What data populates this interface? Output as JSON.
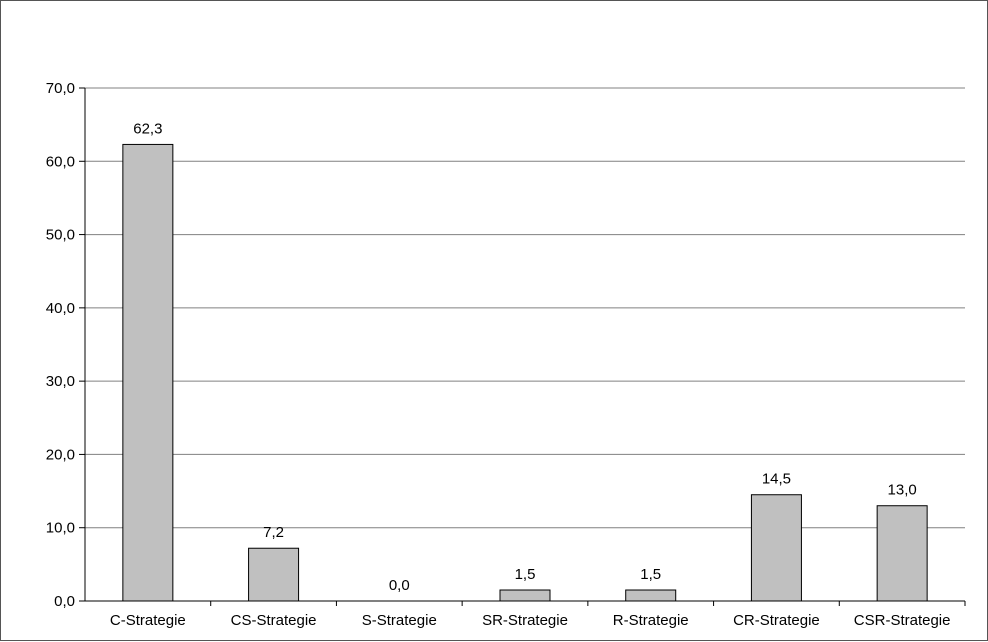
{
  "chart_data": {
    "type": "bar",
    "title": "",
    "xlabel": "",
    "ylabel": "",
    "categories": [
      "C-Strategie",
      "CS-Strategie",
      "S-Strategie",
      "SR-Strategie",
      "R-Strategie",
      "CR-Strategie",
      "CSR-Strategie"
    ],
    "values": [
      62.3,
      7.2,
      0.0,
      1.5,
      1.5,
      14.5,
      13.0
    ],
    "value_labels": [
      "62,3",
      "7,2",
      "0,0",
      "1,5",
      "1,5",
      "14,5",
      "13,0"
    ],
    "ylim": [
      0,
      70
    ],
    "yticks": [
      0,
      10,
      20,
      30,
      40,
      50,
      60,
      70
    ],
    "ytick_labels": [
      "0,0",
      "10,0",
      "20,0",
      "30,0",
      "40,0",
      "50,0",
      "60,0",
      "70,0"
    ],
    "grid": true,
    "legend": "none",
    "colors": {
      "bar_fill": "#c0c0c0",
      "bar_stroke": "#000000",
      "grid": "#808080",
      "axis": "#000000"
    }
  }
}
